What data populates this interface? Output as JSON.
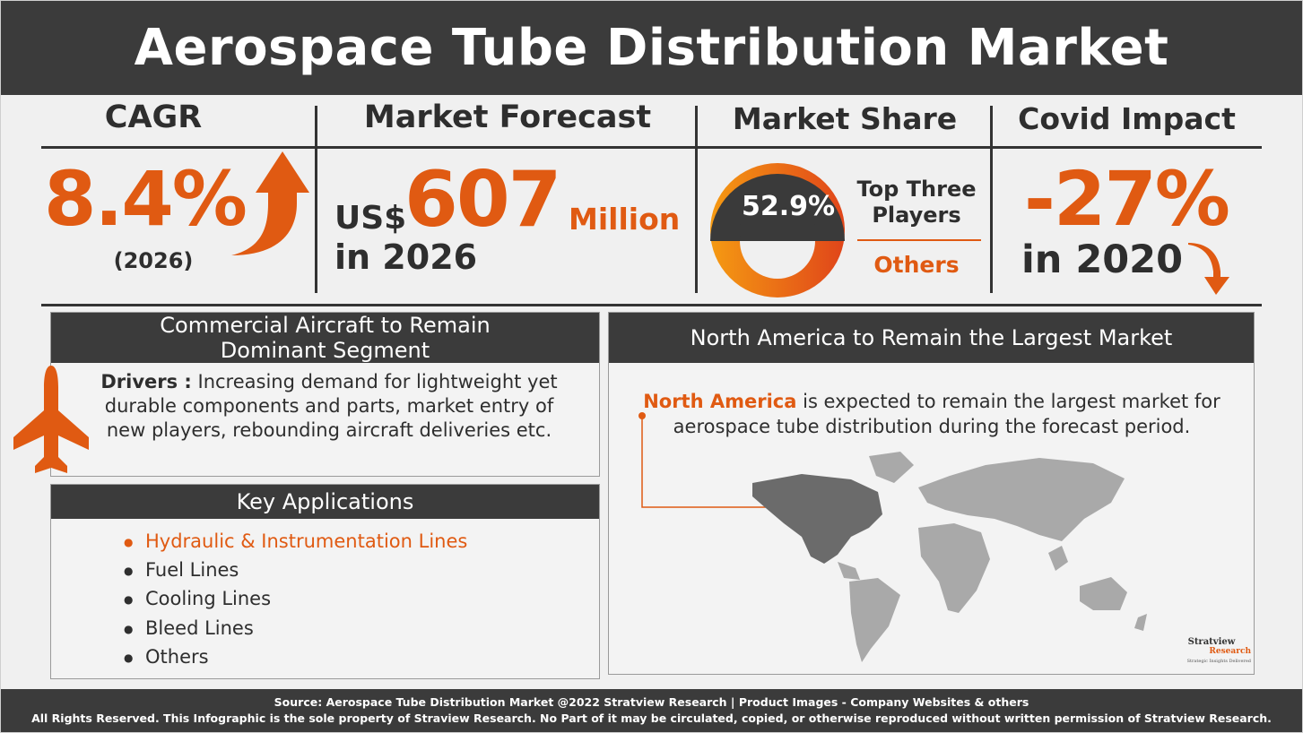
{
  "header": {
    "title": "Aerospace Tube Distribution Market"
  },
  "stats": [
    {
      "heading": "CAGR",
      "value": "8.4%",
      "note": "(2026)"
    },
    {
      "heading": "Market Forecast",
      "prefix": "US$",
      "value": "607",
      "unit": "Million",
      "note": "in 2026"
    },
    {
      "heading": "Market Share",
      "value": "52.9%",
      "label": "Top Three Players",
      "other": "Others"
    },
    {
      "heading": "Covid Impact",
      "value": "-27%",
      "note": "in 2020"
    }
  ],
  "segment": {
    "title": "Commercial Aircraft to Remain Dominant Segment",
    "drivers_label": "Drivers :",
    "drivers_text": "Increasing demand for lightweight yet durable components and parts, market entry of new players, rebounding aircraft deliveries etc."
  },
  "applications": {
    "title": "Key Applications",
    "items": [
      "Hydraulic & Instrumentation Lines",
      "Fuel Lines",
      "Cooling Lines",
      "Bleed Lines",
      "Others"
    ]
  },
  "region": {
    "title": "North America to Remain the Largest Market",
    "highlight": "North America",
    "text": "is expected to remain the largest market for aerospace tube distribution during the forecast period."
  },
  "logo": {
    "name": "Stratview",
    "sub": "Research",
    "tagline": "Strategic Insights Delivered"
  },
  "footer": {
    "source": "Source: Aerospace Tube Distribution Market @2022 Stratview Research | Product Images - Company Websites & others",
    "rights": "All Rights Reserved. This Infographic is the sole property of Straview Research. No Part of it may be circulated, copied, or otherwise reproduced without written permission of Stratview Research."
  }
}
